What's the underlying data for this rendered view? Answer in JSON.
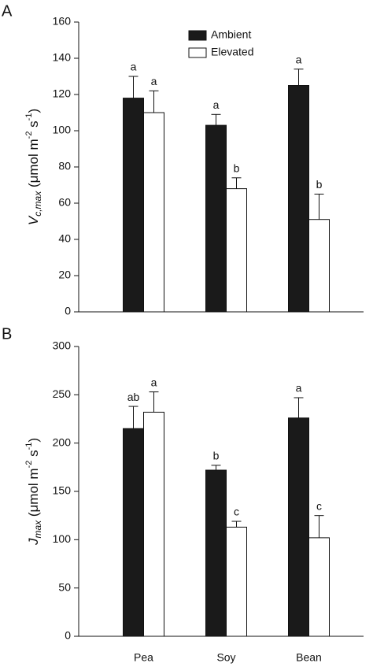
{
  "chart_data": [
    {
      "type": "bar",
      "label": "A",
      "ylabel": [
        "V",
        "c,max",
        " (μmol m",
        "-2",
        " s",
        "-1",
        ")"
      ],
      "categories": [
        null,
        null,
        null
      ],
      "series": [
        {
          "name": "Ambient",
          "color": "#1a1a1a",
          "values": [
            118,
            103,
            125
          ],
          "errors": [
            12,
            6,
            9
          ],
          "letters": [
            "a",
            "a",
            "a"
          ]
        },
        {
          "name": "Elevated",
          "color": "#ffffff",
          "values": [
            110,
            68,
            51
          ],
          "errors": [
            12,
            6,
            14
          ],
          "letters": [
            "a",
            "b",
            "b"
          ]
        }
      ],
      "ylim": [
        0,
        160
      ],
      "yticks": [
        0,
        20,
        40,
        60,
        80,
        100,
        120,
        140,
        160
      ],
      "legend": "upper center"
    },
    {
      "type": "bar",
      "label": "B",
      "ylabel": [
        "J",
        "max",
        " (μmol m",
        "-2",
        " s",
        "-1",
        ")"
      ],
      "categories": [
        "Pea",
        "Soy",
        "Bean"
      ],
      "series": [
        {
          "color": "#1a1a1a",
          "values": [
            215,
            172,
            226
          ],
          "errors": [
            23,
            5,
            21
          ],
          "letters": [
            "ab",
            "b",
            "a"
          ]
        },
        {
          "color": "#ffffff",
          "values": [
            232,
            113,
            102
          ],
          "errors": [
            21,
            6,
            23
          ],
          "letters": [
            "a",
            "c",
            "c"
          ]
        }
      ],
      "ylim": [
        0,
        300
      ],
      "yticks": [
        0,
        50,
        100,
        150,
        200,
        250,
        300
      ]
    }
  ]
}
